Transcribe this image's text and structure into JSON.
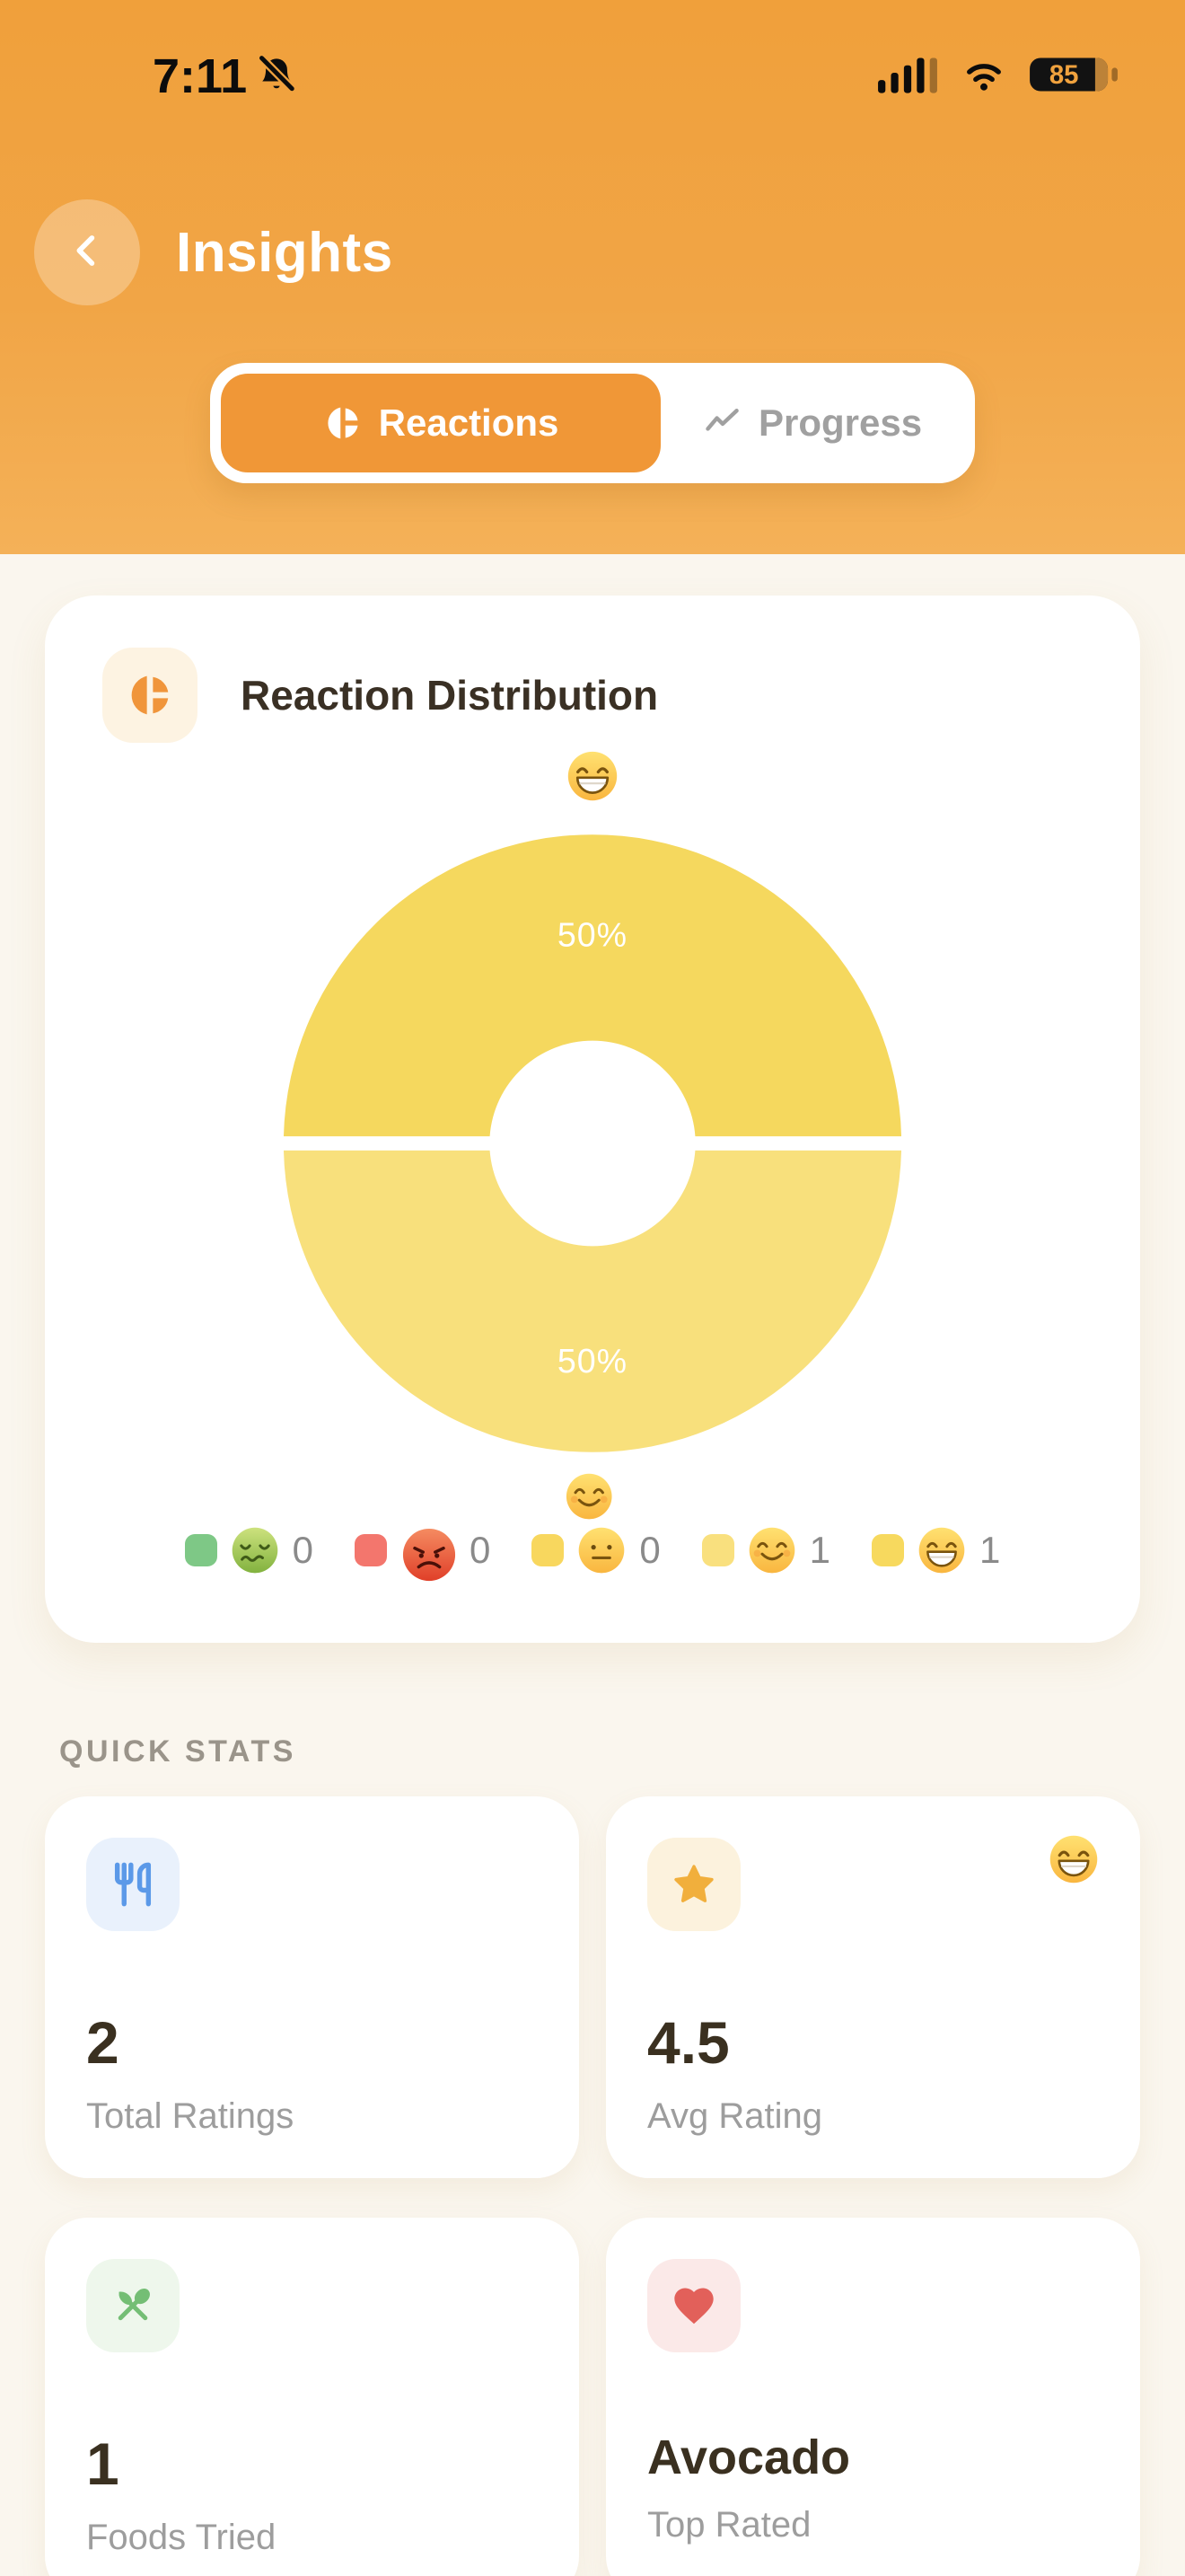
{
  "status_bar": {
    "time": "7:11",
    "battery": "85",
    "icons": [
      "notifications-off-icon",
      "cellular-signal-icon",
      "wifi-icon",
      "battery-icon"
    ]
  },
  "header": {
    "title": "Insights",
    "back_icon": "chevron-left-icon"
  },
  "tabs": {
    "reactions": {
      "label": "Reactions",
      "icon": "pie-chart-icon",
      "active": true
    },
    "progress": {
      "label": "Progress",
      "icon": "trend-line-icon",
      "active": false
    }
  },
  "reaction_card": {
    "title": "Reaction Distribution",
    "header_icon": "pie-chart-icon",
    "header_emoji": "beaming"
  },
  "chart_data": {
    "type": "pie",
    "donut": true,
    "title": "Reaction Distribution",
    "segments": [
      {
        "name": "beaming",
        "value": 1,
        "percent_label": "50%",
        "color": "#F5D85E",
        "position": "top"
      },
      {
        "name": "smiling",
        "value": 1,
        "percent_label": "50%",
        "color": "#F8E07C",
        "position": "bottom"
      }
    ],
    "legend_position": "bottom",
    "legend": [
      {
        "emoji": "nauseated",
        "count": "0",
        "swatch_color": "#7EC886"
      },
      {
        "emoji": "angry",
        "count": "0",
        "swatch_color": "#F3766D"
      },
      {
        "emoji": "neutral",
        "count": "0",
        "swatch_color": "#F8D75E"
      },
      {
        "emoji": "smiling",
        "count": "1",
        "swatch_color": "#F9E07E"
      },
      {
        "emoji": "beaming",
        "count": "1",
        "swatch_color": "#F7D95E"
      }
    ],
    "floating_emoji": "smiling"
  },
  "quick_stats": {
    "section_label": "QUICK STATS",
    "cards": [
      {
        "value": "2",
        "label": "Total Ratings",
        "icon": "fork-knife-icon",
        "icon_color": "#5B99E8",
        "icon_bg": "#E9F1FC"
      },
      {
        "value": "4.5",
        "label": "Avg Rating",
        "icon": "star-icon",
        "icon_color": "#F1AF3C",
        "icon_bg": "#FCF2DD",
        "corner_emoji": "beaming"
      },
      {
        "value": "1",
        "label": "Foods Tried",
        "icon": "utensils-crossed-icon",
        "icon_color": "#74BE75",
        "icon_bg": "#EEF7EC"
      },
      {
        "value": "Avocado",
        "label": "Top Rated",
        "icon": "heart-icon",
        "icon_color": "#E2605A",
        "icon_bg": "#FBE9E8"
      }
    ]
  }
}
